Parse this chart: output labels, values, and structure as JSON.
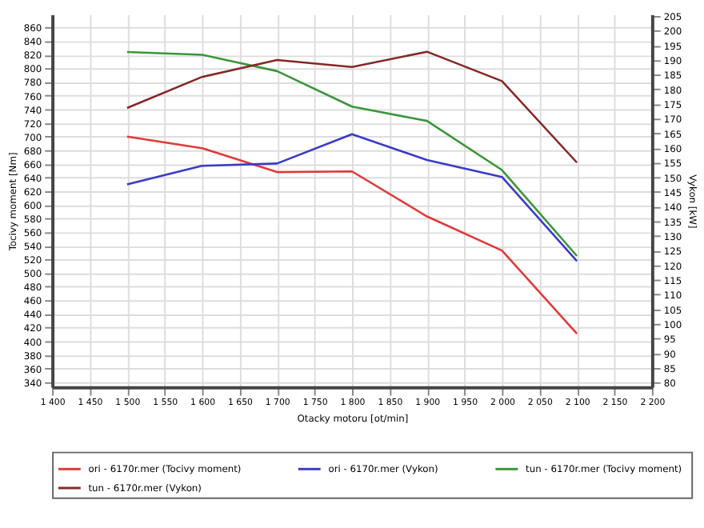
{
  "chart_data": {
    "type": "line",
    "xlabel": "Otacky motoru [ot/min]",
    "ylabel": "Tocivy moment [Nm]",
    "y2label": "Vykon [kW]",
    "x": [
      1500,
      1600,
      1700,
      1800,
      1900,
      2000,
      2100
    ],
    "series": [
      {
        "name": "ori - 6170r.mer  (Tocivy moment)",
        "color": "#e03a3a",
        "values": [
          700,
          683,
          648,
          649,
          583,
          533,
          411
        ]
      },
      {
        "name": "ori - 6170r.mer  (Vykon)",
        "color": "#3a3ac8",
        "axis": "y2",
        "values": [
          147.6,
          153.9,
          154.7,
          164.7,
          155.9,
          150.1,
          121.4
        ]
      },
      {
        "name": "tun - 6170r.mer  (Tocivy moment)",
        "color": "#3a963a",
        "values": [
          824,
          820,
          796,
          744,
          723,
          651,
          525
        ]
      },
      {
        "name": "tun - 6170r.mer  (Vykon)",
        "color": "#862828",
        "axis": "y2",
        "values": [
          173.6,
          184.2,
          190,
          187.6,
          192.8,
          182.8,
          155
        ]
      }
    ],
    "xlim": [
      1400,
      2200
    ],
    "xticks": [
      {
        "value": 1400,
        "label": "1 400"
      },
      {
        "value": 1450,
        "label": "1 450"
      },
      {
        "value": 1500,
        "label": "1 500"
      },
      {
        "value": 1550,
        "label": "1 550"
      },
      {
        "value": 1600,
        "label": "1 600"
      },
      {
        "value": 1650,
        "label": "1 650"
      },
      {
        "value": 1700,
        "label": "1 700"
      },
      {
        "value": 1750,
        "label": "1 750"
      },
      {
        "value": 1800,
        "label": "1 800"
      },
      {
        "value": 1850,
        "label": "1 850"
      },
      {
        "value": 1900,
        "label": "1 900"
      },
      {
        "value": 1950,
        "label": "1 950"
      },
      {
        "value": 2000,
        "label": "2 000"
      },
      {
        "value": 2050,
        "label": "2 050"
      },
      {
        "value": 2100,
        "label": "2 100"
      },
      {
        "value": 2150,
        "label": "2 150"
      },
      {
        "value": 2200,
        "label": "2 200"
      }
    ],
    "ylim": [
      333,
      879
    ],
    "yticks": [
      340,
      360,
      380,
      400,
      420,
      440,
      460,
      480,
      500,
      520,
      540,
      560,
      580,
      600,
      620,
      640,
      660,
      680,
      700,
      720,
      740,
      760,
      780,
      800,
      820,
      840,
      860
    ],
    "y2lim": [
      78.5,
      205.5
    ],
    "y2ticks": [
      80,
      85,
      90,
      95,
      100,
      105,
      110,
      115,
      120,
      125,
      130,
      135,
      140,
      145,
      150,
      155,
      160,
      165,
      170,
      175,
      180,
      185,
      190,
      195,
      200,
      205
    ],
    "grid": true,
    "legend": "bottom"
  }
}
